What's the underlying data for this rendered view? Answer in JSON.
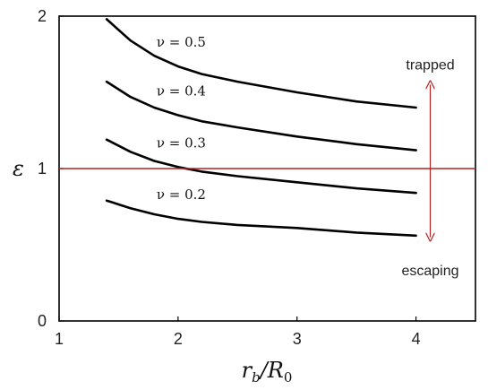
{
  "chart_data": {
    "type": "line",
    "title": "",
    "xlabel": "r_b/R_0",
    "ylabel": "ε",
    "xlim": [
      1,
      4.5
    ],
    "ylim": [
      0,
      2
    ],
    "x_ticks": [
      1,
      2,
      3,
      4
    ],
    "y_ticks": [
      0,
      1,
      2
    ],
    "grid": false,
    "x": [
      1.4,
      1.6,
      1.8,
      2.0,
      2.2,
      2.5,
      3.0,
      3.5,
      4.0
    ],
    "series": [
      {
        "name": "ν = 0.5",
        "values": [
          1.98,
          1.84,
          1.74,
          1.67,
          1.62,
          1.57,
          1.5,
          1.44,
          1.4
        ]
      },
      {
        "name": "ν = 0.4",
        "values": [
          1.57,
          1.47,
          1.4,
          1.35,
          1.31,
          1.27,
          1.21,
          1.16,
          1.12
        ]
      },
      {
        "name": "ν = 0.3",
        "values": [
          1.19,
          1.11,
          1.05,
          1.01,
          0.98,
          0.95,
          0.91,
          0.87,
          0.84
        ]
      },
      {
        "name": "ν = 0.2",
        "values": [
          0.79,
          0.74,
          0.7,
          0.67,
          0.65,
          0.63,
          0.61,
          0.58,
          0.56
        ]
      }
    ],
    "reference_line": {
      "y": 1,
      "color": "#b22222"
    },
    "annotations": {
      "trapped": "trapped",
      "escaping": "escaping",
      "arrow_x": 4.12,
      "arrow_y": [
        0.55,
        1.55
      ],
      "color": "#b22222"
    }
  }
}
